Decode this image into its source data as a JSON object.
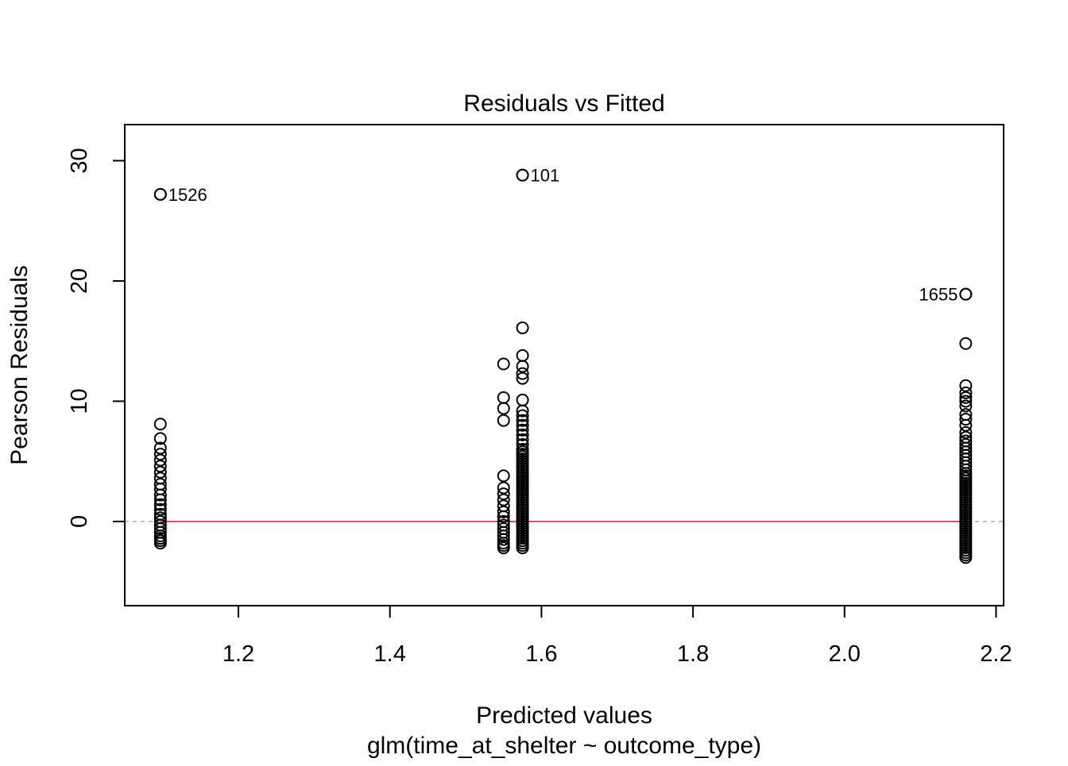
{
  "chart_data": {
    "type": "scatter",
    "title": "Residuals vs Fitted",
    "xlabel": "Predicted values",
    "subtitle": "glm(time_at_shelter ~ outcome_type)",
    "ylabel": "Pearson Residuals",
    "xlim": [
      1.05,
      2.21
    ],
    "ylim": [
      -7,
      33
    ],
    "x_ticks": [
      1.2,
      1.4,
      1.6,
      1.8,
      2.0,
      2.2
    ],
    "x_tick_labels": [
      "1.2",
      "1.4",
      "1.6",
      "1.8",
      "2.0",
      "2.2"
    ],
    "y_ticks": [
      0,
      10,
      20,
      30
    ],
    "y_tick_labels": [
      "0",
      "10",
      "20",
      "30"
    ],
    "reference_line": {
      "y": 0,
      "style": "dashed",
      "color": "#aaaaaa"
    },
    "smoother_line": {
      "y": 0,
      "color": "#df536b"
    },
    "point_marker": "open-circle",
    "groups": [
      {
        "x": 1.097,
        "y": [
          -1.8,
          -1.6,
          -1.4,
          -1.2,
          -0.9,
          -0.6,
          -0.3,
          0.0,
          0.3,
          0.6,
          1.0,
          1.4,
          1.8,
          2.2,
          2.7,
          3.1,
          3.6,
          4.1,
          4.6,
          5.1,
          5.6,
          6.1,
          6.9,
          8.1,
          27.2
        ]
      },
      {
        "x": 1.55,
        "y": [
          -2.2,
          -2.0,
          -1.8,
          -1.5,
          -1.2,
          -0.9,
          -0.6,
          -0.3,
          0.0,
          0.4,
          0.8,
          1.3,
          1.8,
          2.3,
          2.8,
          3.8,
          8.4,
          9.4,
          10.3,
          13.1
        ]
      },
      {
        "x": 1.575,
        "y": [
          -2.2,
          -2.0,
          -1.8,
          -1.6,
          -1.4,
          -1.2,
          -1.0,
          -0.8,
          -0.6,
          -0.4,
          -0.2,
          0.0,
          0.2,
          0.4,
          0.6,
          0.8,
          1.0,
          1.2,
          1.4,
          1.6,
          1.8,
          2.0,
          2.2,
          2.4,
          2.6,
          2.8,
          3.0,
          3.2,
          3.4,
          3.6,
          3.8,
          4.0,
          4.2,
          4.4,
          4.6,
          4.8,
          5.0,
          5.2,
          5.4,
          5.6,
          5.8,
          6.0,
          6.4,
          6.8,
          7.2,
          7.6,
          8.0,
          8.4,
          8.8,
          9.2,
          10.1,
          11.9,
          12.3,
          12.9,
          13.8,
          16.1,
          28.8
        ]
      },
      {
        "x": 2.16,
        "y": [
          -3.0,
          -2.8,
          -2.6,
          -2.4,
          -2.2,
          -2.0,
          -1.8,
          -1.6,
          -1.4,
          -1.2,
          -1.0,
          -0.8,
          -0.6,
          -0.4,
          -0.2,
          0.0,
          0.2,
          0.4,
          0.6,
          0.8,
          1.0,
          1.2,
          1.4,
          1.6,
          1.8,
          2.0,
          2.2,
          2.4,
          2.6,
          2.8,
          3.0,
          3.2,
          3.4,
          3.6,
          3.8,
          4.0,
          4.3,
          4.6,
          4.9,
          5.2,
          5.5,
          5.8,
          6.1,
          6.4,
          6.7,
          7.0,
          7.4,
          8.0,
          8.5,
          8.9,
          9.6,
          10.0,
          10.3,
          10.7,
          11.3,
          14.8,
          18.9
        ]
      }
    ],
    "labeled_points": [
      {
        "label": "1526",
        "x": 1.097,
        "y": 27.2,
        "side": "right"
      },
      {
        "label": "101",
        "x": 1.575,
        "y": 28.8,
        "side": "right"
      },
      {
        "label": "1655",
        "x": 2.16,
        "y": 18.9,
        "side": "left"
      }
    ]
  }
}
